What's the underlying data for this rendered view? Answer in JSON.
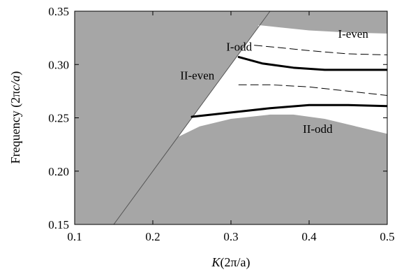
{
  "chart_data": {
    "type": "line",
    "xlabel_italic": "K",
    "xlabel_rest": "(2π/a)",
    "ylabel_prefix": "Frequency (2π",
    "ylabel_italic": "c/a",
    "ylabel_suffix": ")",
    "xlim": [
      0.1,
      0.5
    ],
    "ylim": [
      0.15,
      0.35
    ],
    "xticks": [
      0.1,
      0.2,
      0.3,
      0.4,
      0.5
    ],
    "xtick_labels": [
      "0.1",
      "0.2",
      "0.3",
      "0.4",
      "0.5"
    ],
    "yticks": [
      0.15,
      0.2,
      0.25,
      0.3,
      0.35
    ],
    "ytick_labels": [
      "0.15",
      "0.20",
      "0.25",
      "0.30",
      "0.35"
    ],
    "light_line": {
      "x": [
        0.15,
        0.35
      ],
      "y": [
        0.15,
        0.35
      ]
    },
    "bandgap_region": {
      "upper_edge": {
        "x": [
          0.335,
          0.36,
          0.4,
          0.45,
          0.5
        ],
        "y": [
          0.337,
          0.335,
          0.332,
          0.33,
          0.329
        ]
      },
      "lower_edge": {
        "x": [
          0.232,
          0.26,
          0.3,
          0.35,
          0.38,
          0.42,
          0.46,
          0.5
        ],
        "y": [
          0.232,
          0.242,
          0.249,
          0.253,
          0.253,
          0.249,
          0.242,
          0.235
        ]
      }
    },
    "series": [
      {
        "name": "I-odd",
        "style": "solid",
        "x": [
          0.31,
          0.34,
          0.38,
          0.42,
          0.46,
          0.5
        ],
        "y": [
          0.307,
          0.301,
          0.297,
          0.295,
          0.295,
          0.295
        ]
      },
      {
        "name": "II-odd",
        "style": "solid",
        "x": [
          0.25,
          0.3,
          0.35,
          0.4,
          0.45,
          0.5
        ],
        "y": [
          0.251,
          0.255,
          0.259,
          0.262,
          0.262,
          0.261
        ]
      },
      {
        "name": "I-even",
        "style": "dashed",
        "x": [
          0.33,
          0.36,
          0.4,
          0.45,
          0.5
        ],
        "y": [
          0.318,
          0.316,
          0.313,
          0.31,
          0.309
        ]
      },
      {
        "name": "II-even",
        "style": "dashed",
        "x": [
          0.31,
          0.35,
          0.4,
          0.45,
          0.5
        ],
        "y": [
          0.281,
          0.281,
          0.279,
          0.275,
          0.271
        ]
      }
    ],
    "annotations": [
      {
        "text": "I-odd",
        "x": 0.294,
        "y": 0.313
      },
      {
        "text": "I-even",
        "x": 0.437,
        "y": 0.325
      },
      {
        "text": "II-even",
        "x": 0.235,
        "y": 0.286
      },
      {
        "text": "II-odd",
        "x": 0.392,
        "y": 0.236
      }
    ],
    "colors": {
      "gray_region": "#a6a6a6",
      "gap_region": "#ffffff",
      "curves": "#000000",
      "light_line": "#555555"
    }
  }
}
